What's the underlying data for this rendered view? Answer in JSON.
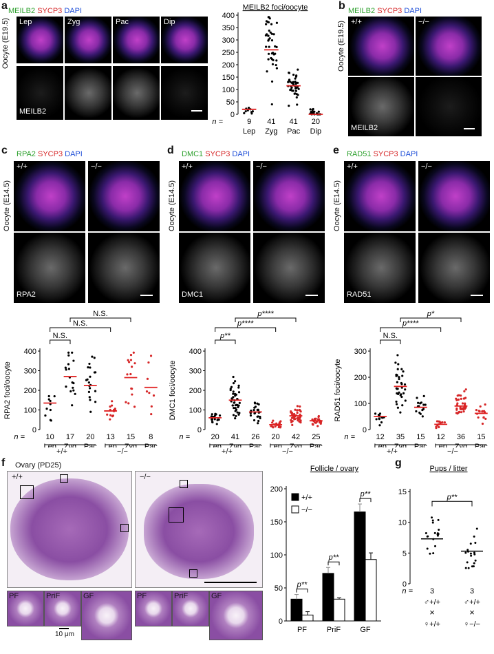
{
  "colors": {
    "green": "#2ca02c",
    "red": "#d62728",
    "blue": "#1f4fd8",
    "median": "#e02020",
    "mutant": "#d62728"
  },
  "panel_labels": {
    "a": "a",
    "b": "b",
    "c": "c",
    "d": "d",
    "e": "e",
    "f": "f",
    "g": "g"
  },
  "a": {
    "stain": {
      "g": "MEILB2",
      "r": "SYCP3",
      "b": "DAPI"
    },
    "side": "Oocyte (E19.5)",
    "stages": [
      "Lep",
      "Zyg",
      "Pac",
      "Dip"
    ],
    "gray_label": "MEILB2"
  },
  "b": {
    "stain": {
      "g": "MEILB2",
      "r": "SYCP3",
      "b": "DAPI"
    },
    "side": "Oocyte (E19.5)",
    "geno": [
      "+/+",
      "−/−"
    ],
    "gray_label": "MEILB2"
  },
  "c": {
    "stain": {
      "g": "RPA2",
      "r": "SYCP3",
      "b": "DAPI"
    },
    "side": "Oocyte (E14.5)",
    "geno": [
      "+/+",
      "−/−"
    ],
    "gray_label": "RPA2"
  },
  "d": {
    "stain": {
      "g": "DMC1",
      "r": "SYCP3",
      "b": "DAPI"
    },
    "side": "Oocyte (E14.5)",
    "geno": [
      "+/+",
      "−/−"
    ],
    "gray_label": "DMC1"
  },
  "e": {
    "stain": {
      "g": "RAD51",
      "r": "SYCP3",
      "b": "DAPI"
    },
    "side": "Oocyte (E14.5)",
    "geno": [
      "+/+",
      "−/−"
    ],
    "gray_label": "RAD51"
  },
  "f": {
    "title": "Ovary (PD25)",
    "geno": [
      "+/+",
      "−/−"
    ],
    "zoom_labels": [
      "PF",
      "PriF",
      "GF"
    ],
    "scale": "10 μm"
  },
  "n_label": "n =",
  "chart_data": [
    {
      "id": "a",
      "type": "scatter",
      "title": "MEILB2 foci/oocyte",
      "categories": [
        "Lep",
        "Zyg",
        "Pac",
        "Dip"
      ],
      "n": [
        "9",
        "41",
        "41",
        "20"
      ],
      "medians": [
        20,
        260,
        115,
        0
      ],
      "ylim": [
        0,
        400
      ],
      "yticks": [
        0,
        50,
        100,
        150,
        200,
        250,
        300,
        350,
        400
      ],
      "groups": [
        "",
        "",
        "",
        ""
      ]
    },
    {
      "id": "c",
      "type": "scatter",
      "ylabel": "RPA2 foci/oocyte",
      "categories": [
        "Lep",
        "Zyg",
        "Pac",
        "Lep",
        "Zyg",
        "Pac"
      ],
      "n": [
        "10",
        "17",
        "20",
        "13",
        "15",
        "8"
      ],
      "medians": [
        135,
        270,
        225,
        95,
        265,
        215
      ],
      "ylim": [
        0,
        400
      ],
      "yticks": [
        0,
        100,
        200,
        300,
        400
      ],
      "genotypes": [
        "+/+",
        "−/−"
      ],
      "sig": [
        {
          "from": 0,
          "to": 1,
          "label": "N.S."
        },
        {
          "from": 0,
          "to": 3,
          "label": "N.S."
        },
        {
          "from": 1,
          "to": 4,
          "label": "N.S."
        }
      ]
    },
    {
      "id": "d",
      "type": "scatter",
      "ylabel": "DMC1 foci/oocyte",
      "categories": [
        "Lep",
        "Zyg",
        "Pac",
        "Lep",
        "Zyg",
        "Pac"
      ],
      "n": [
        "20",
        "41",
        "26",
        "20",
        "42",
        "25"
      ],
      "medians": [
        60,
        150,
        90,
        25,
        70,
        45
      ],
      "ylim": [
        0,
        400
      ],
      "yticks": [
        0,
        100,
        200,
        300,
        400
      ],
      "genotypes": [
        "+/+",
        "−/−"
      ],
      "sig": [
        {
          "from": 0,
          "to": 1,
          "label": "p**"
        },
        {
          "from": 0,
          "to": 3,
          "label": "p****"
        },
        {
          "from": 1,
          "to": 4,
          "label": "p****"
        }
      ]
    },
    {
      "id": "e",
      "type": "scatter",
      "ylabel": "RAD51 foci/oocyte",
      "categories": [
        "Lep",
        "Zyg",
        "Pac",
        "Lep",
        "Zyg",
        "Pac"
      ],
      "n": [
        "12",
        "35",
        "15",
        "12",
        "36",
        "15"
      ],
      "medians": [
        50,
        165,
        85,
        20,
        90,
        62
      ],
      "ylim": [
        0,
        300
      ],
      "yticks": [
        0,
        100,
        200,
        300
      ],
      "genotypes": [
        "+/+",
        "−/−"
      ],
      "sig": [
        {
          "from": 0,
          "to": 1,
          "label": "N.S."
        },
        {
          "from": 0,
          "to": 3,
          "label": "p****"
        },
        {
          "from": 1,
          "to": 4,
          "label": "p*"
        }
      ]
    },
    {
      "id": "f",
      "type": "bar",
      "title": "Follicle / ovary",
      "categories": [
        "PF",
        "PriF",
        "GF"
      ],
      "series": [
        {
          "name": "+/+",
          "values": [
            33,
            72,
            165
          ],
          "err": [
            7,
            9,
            12
          ]
        },
        {
          "name": "−/−",
          "values": [
            9,
            33,
            93
          ],
          "err": [
            5,
            2,
            10
          ]
        }
      ],
      "ylim": [
        0,
        200
      ],
      "yticks": [
        0,
        50,
        100,
        150,
        200
      ],
      "sig": [
        "p**",
        "p**",
        "p**"
      ]
    },
    {
      "id": "g",
      "type": "scatter",
      "title": "Pups / litter",
      "categories": [
        "♂+/+ × ♀+/+",
        "♂+/+ × ♀−/−"
      ],
      "n": [
        "3",
        "3"
      ],
      "medians": [
        7.3,
        5.3
      ],
      "ylim": [
        0,
        15
      ],
      "yticks": [
        0,
        5,
        10,
        15
      ],
      "sig": "p**",
      "cross": [
        {
          "male": "♂+/+",
          "x": "×",
          "female": "♀+/+"
        },
        {
          "male": "♂+/+",
          "x": "×",
          "female": "♀−/−"
        }
      ]
    }
  ]
}
